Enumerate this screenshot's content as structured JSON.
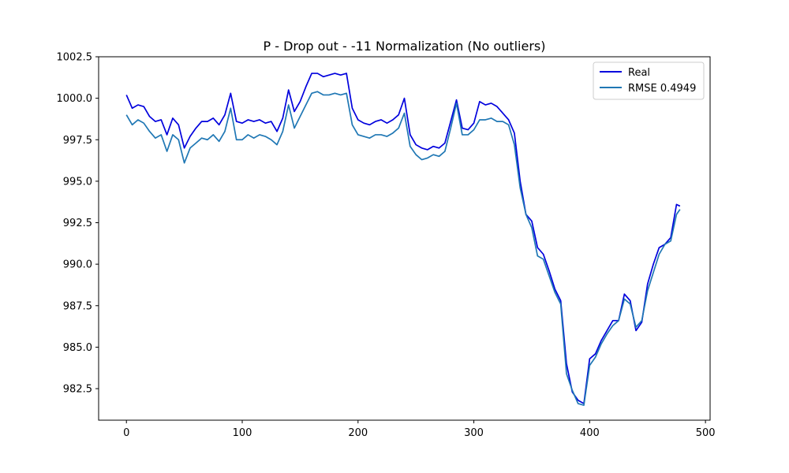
{
  "chart_data": {
    "type": "line",
    "title": "P - Drop out - -11 Normalization (No outliers)",
    "xlabel": "",
    "ylabel": "",
    "xlim": [
      -24,
      504
    ],
    "ylim": [
      980.6,
      1002.5
    ],
    "xticks": [
      0,
      100,
      200,
      300,
      400,
      500
    ],
    "yticks": [
      982.5,
      985.0,
      987.5,
      990.0,
      992.5,
      995.0,
      997.5,
      1000.0,
      1002.5
    ],
    "xtick_labels": [
      "0",
      "100",
      "200",
      "300",
      "400",
      "500"
    ],
    "ytick_labels": [
      "982.5",
      "985.0",
      "987.5",
      "990.0",
      "992.5",
      "995.0",
      "997.5",
      "1000.0",
      "1002.5"
    ],
    "grid": false,
    "legend_position": "top-right",
    "series": [
      {
        "name": "Real",
        "color": "#0000dd",
        "x": [
          0,
          5,
          10,
          15,
          20,
          25,
          30,
          35,
          40,
          45,
          50,
          55,
          60,
          65,
          70,
          75,
          80,
          85,
          90,
          95,
          100,
          105,
          110,
          115,
          120,
          125,
          130,
          135,
          140,
          145,
          150,
          155,
          160,
          165,
          170,
          175,
          180,
          185,
          190,
          195,
          200,
          205,
          210,
          215,
          220,
          225,
          230,
          235,
          240,
          245,
          250,
          255,
          260,
          265,
          270,
          275,
          280,
          285,
          290,
          295,
          300,
          305,
          310,
          315,
          320,
          325,
          330,
          335,
          340,
          345,
          350,
          355,
          360,
          365,
          370,
          375,
          380,
          385,
          390,
          395,
          400,
          405,
          410,
          415,
          420,
          425,
          430,
          435,
          440,
          445,
          450,
          455,
          460,
          465,
          470,
          475,
          478
        ],
        "y": [
          1000.2,
          999.4,
          999.6,
          999.5,
          998.9,
          998.6,
          998.7,
          997.8,
          998.8,
          998.4,
          997.0,
          997.7,
          998.2,
          998.6,
          998.6,
          998.8,
          998.4,
          999.0,
          1000.3,
          998.6,
          998.5,
          998.7,
          998.6,
          998.7,
          998.5,
          998.6,
          998.0,
          998.8,
          1000.5,
          999.2,
          999.8,
          1000.7,
          1001.5,
          1001.5,
          1001.3,
          1001.4,
          1001.5,
          1001.4,
          1001.5,
          999.4,
          998.7,
          998.5,
          998.4,
          998.6,
          998.7,
          998.5,
          998.7,
          999.0,
          1000.0,
          997.8,
          997.2,
          997.0,
          996.9,
          997.1,
          997.0,
          997.3,
          998.6,
          999.9,
          998.2,
          998.1,
          998.5,
          999.8,
          999.6,
          999.7,
          999.5,
          999.1,
          998.7,
          997.9,
          995.0,
          993.0,
          992.6,
          991.0,
          990.6,
          989.6,
          988.5,
          987.8,
          984.0,
          982.3,
          981.8,
          981.6,
          984.3,
          984.6,
          985.4,
          986.0,
          986.6,
          986.6,
          988.2,
          987.8,
          986.0,
          986.5,
          988.8,
          990.0,
          991.0,
          991.2,
          991.6,
          993.6,
          993.5
        ]
      },
      {
        "name": "RMSE 0.4949",
        "color": "#1f77b4",
        "x": [
          0,
          5,
          10,
          15,
          20,
          25,
          30,
          35,
          40,
          45,
          50,
          55,
          60,
          65,
          70,
          75,
          80,
          85,
          90,
          95,
          100,
          105,
          110,
          115,
          120,
          125,
          130,
          135,
          140,
          145,
          150,
          155,
          160,
          165,
          170,
          175,
          180,
          185,
          190,
          195,
          200,
          205,
          210,
          215,
          220,
          225,
          230,
          235,
          240,
          245,
          250,
          255,
          260,
          265,
          270,
          275,
          280,
          285,
          290,
          295,
          300,
          305,
          310,
          315,
          320,
          325,
          330,
          335,
          340,
          345,
          350,
          355,
          360,
          365,
          370,
          375,
          380,
          385,
          390,
          395,
          400,
          405,
          410,
          415,
          420,
          425,
          430,
          435,
          440,
          445,
          450,
          455,
          460,
          465,
          470,
          475,
          478
        ],
        "y": [
          999.0,
          998.4,
          998.7,
          998.5,
          998.0,
          997.6,
          997.8,
          996.8,
          997.8,
          997.5,
          996.1,
          997.0,
          997.3,
          997.6,
          997.5,
          997.8,
          997.4,
          998.0,
          999.4,
          997.5,
          997.5,
          997.8,
          997.6,
          997.8,
          997.7,
          997.5,
          997.2,
          998.0,
          999.6,
          998.2,
          998.9,
          999.6,
          1000.3,
          1000.4,
          1000.2,
          1000.2,
          1000.3,
          1000.2,
          1000.3,
          998.4,
          997.8,
          997.7,
          997.6,
          997.8,
          997.8,
          997.7,
          997.9,
          998.2,
          999.1,
          997.1,
          996.6,
          996.3,
          996.4,
          996.6,
          996.5,
          996.8,
          998.2,
          999.7,
          997.8,
          997.8,
          998.1,
          998.7,
          998.7,
          998.8,
          998.6,
          998.6,
          998.4,
          997.2,
          994.6,
          993.0,
          992.2,
          990.5,
          990.3,
          989.3,
          988.3,
          987.6,
          983.4,
          982.4,
          981.6,
          981.5,
          983.9,
          984.4,
          985.2,
          985.8,
          986.3,
          986.6,
          987.9,
          987.6,
          986.2,
          986.6,
          988.4,
          989.5,
          990.6,
          991.2,
          991.4,
          993.0,
          993.3
        ]
      }
    ]
  }
}
